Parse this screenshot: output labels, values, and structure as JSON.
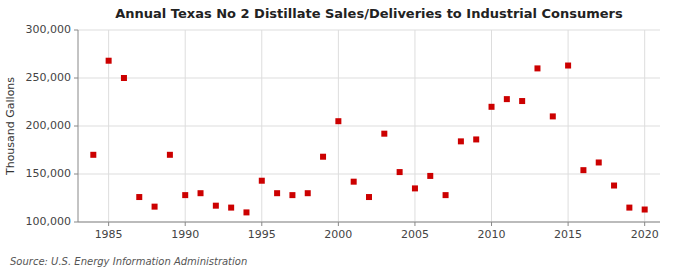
{
  "chart_data": {
    "type": "scatter",
    "title": "Annual Texas No 2 Distillate Sales/Deliveries to Industrial Consumers",
    "y_label": "Thousand Gallons",
    "annotations": [
      "Source: U.S. Energy Information Administration"
    ],
    "color": "#cc0000",
    "marker": "square",
    "grid": true,
    "xlim": [
      1983,
      2021
    ],
    "ylim": [
      100000,
      300000
    ],
    "xticks": [
      1985,
      1990,
      1995,
      2000,
      2005,
      2010,
      2015,
      2020
    ],
    "yticks": [
      {
        "value": 100000,
        "label": "100,000"
      },
      {
        "value": 150000,
        "label": "150,000"
      },
      {
        "value": 200000,
        "label": "200,000"
      },
      {
        "value": 250000,
        "label": "250,000"
      },
      {
        "value": 300000,
        "label": "300,000"
      }
    ],
    "x": [
      1984,
      1985,
      1986,
      1987,
      1988,
      1989,
      1990,
      1991,
      1992,
      1993,
      1994,
      1995,
      1996,
      1997,
      1998,
      1999,
      2000,
      2001,
      2002,
      2003,
      2004,
      2005,
      2006,
      2007,
      2008,
      2009,
      2010,
      2011,
      2012,
      2013,
      2014,
      2015,
      2016,
      2017,
      2018,
      2019,
      2020
    ],
    "values": [
      170000,
      268000,
      250000,
      126000,
      116000,
      170000,
      128000,
      130000,
      117000,
      115000,
      110000,
      143000,
      130000,
      128000,
      130000,
      168000,
      205000,
      142000,
      126000,
      192000,
      152000,
      135000,
      148000,
      128000,
      184000,
      186000,
      220000,
      228000,
      226000,
      260000,
      210000,
      263000,
      154000,
      162000,
      138000,
      115000,
      113000
    ]
  }
}
